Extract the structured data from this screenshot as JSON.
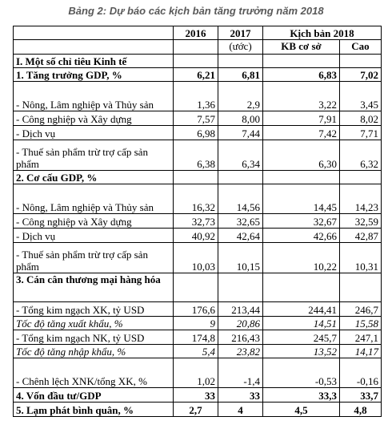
{
  "caption": "Bảng 2: Dự báo các kịch bản tăng trưởng năm 2018",
  "header": {
    "col2016": "2016",
    "col2017": "2017",
    "col2017_note": "(ước)",
    "scenario_group": "Kịch bản 2018",
    "col_base": "KB cơ sở",
    "col_high": "Cao"
  },
  "rows": [
    {
      "label": "I. Một số chỉ tiêu Kinh tế",
      "v2016": "",
      "v2017": "",
      "base": "",
      "high": ""
    },
    {
      "label": "1. Tăng trưởng GDP, %",
      "v2016": "6,21",
      "v2017": "6,81",
      "base": "6,83",
      "high": "7,02"
    },
    {
      "label": "- Nông, Lâm nghiệp và Thủy sản",
      "v2016": "1,36",
      "v2017": "2,9",
      "base": "3,22",
      "high": "3,45"
    },
    {
      "label": "- Công nghiệp và Xây dựng",
      "v2016": "7,57",
      "v2017": "8,00",
      "base": "7,91",
      "high": "8,02"
    },
    {
      "label": "- Dịch vụ",
      "v2016": "6,98",
      "v2017": "7,44",
      "base": "7,42",
      "high": "7,71"
    },
    {
      "label": "- Thuế sản phẩm trừ trợ cấp sản phẩm",
      "v2016": "6,38",
      "v2017": "6,34",
      "base": "6,30",
      "high": "6,32"
    },
    {
      "label": "2. Cơ cấu GDP, %",
      "v2016": "",
      "v2017": "",
      "base": "",
      "high": ""
    },
    {
      "label": "- Nông, Lâm nghiệp và Thủy sản",
      "v2016": "16,32",
      "v2017": "14,56",
      "base": "14,45",
      "high": "14,23"
    },
    {
      "label": "- Công nghiệp và Xây dựng",
      "v2016": "32,73",
      "v2017": "32,65",
      "base": "32,67",
      "high": "32,59"
    },
    {
      "label": "- Dịch vụ",
      "v2016": "40,92",
      "v2017": "42,64",
      "base": "42,66",
      "high": "42,87"
    },
    {
      "label": "- Thuế sản phẩm trừ trợ cấp sản phẩm",
      "v2016": "10,03",
      "v2017": "10,15",
      "base": "10,22",
      "high": "10,31"
    },
    {
      "label": "3. Cán cân thương mại hàng hóa",
      "v2016": "",
      "v2017": "",
      "base": "",
      "high": ""
    },
    {
      "label": "- Tổng kim ngạch XK, tỷ USD",
      "v2016": "176,6",
      "v2017": "213,44",
      "base": "244,41",
      "high": "246,7"
    },
    {
      "label": "Tốc độ tăng xuất khẩu, %",
      "v2016": "9",
      "v2017": "20,86",
      "base": "14,51",
      "high": "15,58"
    },
    {
      "label": "- Tổng kim ngạch NK, tỷ USD",
      "v2016": "174,8",
      "v2017": "216,43",
      "base": "245,7",
      "high": "247,1"
    },
    {
      "label": "Tốc độ tăng nhập khẩu, %",
      "v2016": "5,4",
      "v2017": "23,82",
      "base": "13,52",
      "high": "14,17"
    },
    {
      "label": "- Chênh lệch XNK/tổng XK, %",
      "v2016": "1,02",
      "v2017": "-1,4",
      "base": "-0,53",
      "high": "-0,16"
    },
    {
      "label": "4. Vốn đầu tư/GDP",
      "v2016": "33",
      "v2017": "33",
      "base": "33,3",
      "high": "33,7"
    },
    {
      "label": "5. Lạm phát bình quân, %",
      "v2016": "2,7",
      "v2017": "4",
      "base": "4,5",
      "high": "4,8"
    }
  ]
}
